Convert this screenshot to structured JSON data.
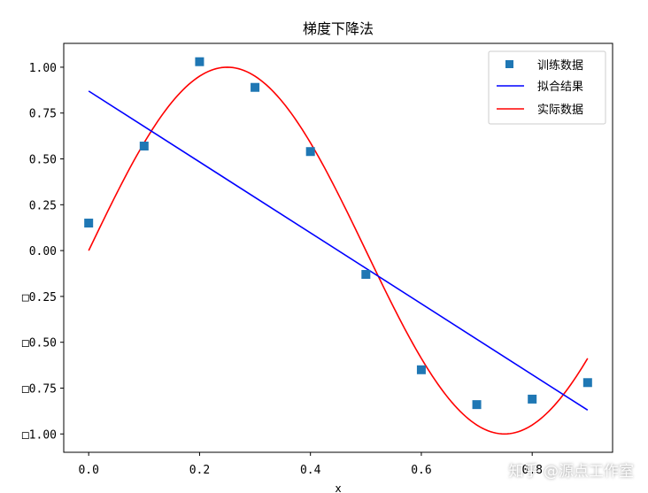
{
  "chart_data": {
    "type": "line",
    "title": "梯度下降法",
    "xlabel": "x",
    "ylabel": "",
    "xlim": [
      -0.045,
      0.945
    ],
    "ylim": [
      -1.1,
      1.13
    ],
    "xticks": [
      0.0,
      0.2,
      0.4,
      0.6,
      0.8
    ],
    "xtick_labels": [
      "0.0",
      "0.2",
      "0.4",
      "0.6",
      "0.8"
    ],
    "yticks": [
      1.0,
      0.75,
      0.5,
      0.25,
      0.0,
      -0.25,
      -0.5,
      -0.75,
      -1.0
    ],
    "ytick_labels": [
      "1.00",
      "0.75",
      "0.50",
      "0.25",
      "0.00",
      "□0.25",
      "□0.50",
      "□0.75",
      "□1.00"
    ],
    "grid": false,
    "legend_position": "top-right",
    "series": [
      {
        "name": "训练数据",
        "kind": "scatter",
        "marker": "square",
        "color": "#1f77b4",
        "x": [
          0.0,
          0.1,
          0.2,
          0.3,
          0.4,
          0.5,
          0.6,
          0.7,
          0.8,
          0.9
        ],
        "y": [
          0.15,
          0.57,
          1.03,
          0.89,
          0.54,
          -0.13,
          -0.65,
          -0.84,
          -0.81,
          -0.72
        ]
      },
      {
        "name": "拟合结果",
        "kind": "line",
        "color": "#0000ff",
        "x": [
          0.0,
          0.9
        ],
        "y": [
          0.87,
          -0.87
        ]
      },
      {
        "name": "实际数据",
        "kind": "function",
        "function": "sin(2*pi*x)",
        "color": "#ff0000",
        "x_range": [
          0.0,
          0.9
        ]
      }
    ]
  },
  "watermark": "知乎 @源点工作室"
}
